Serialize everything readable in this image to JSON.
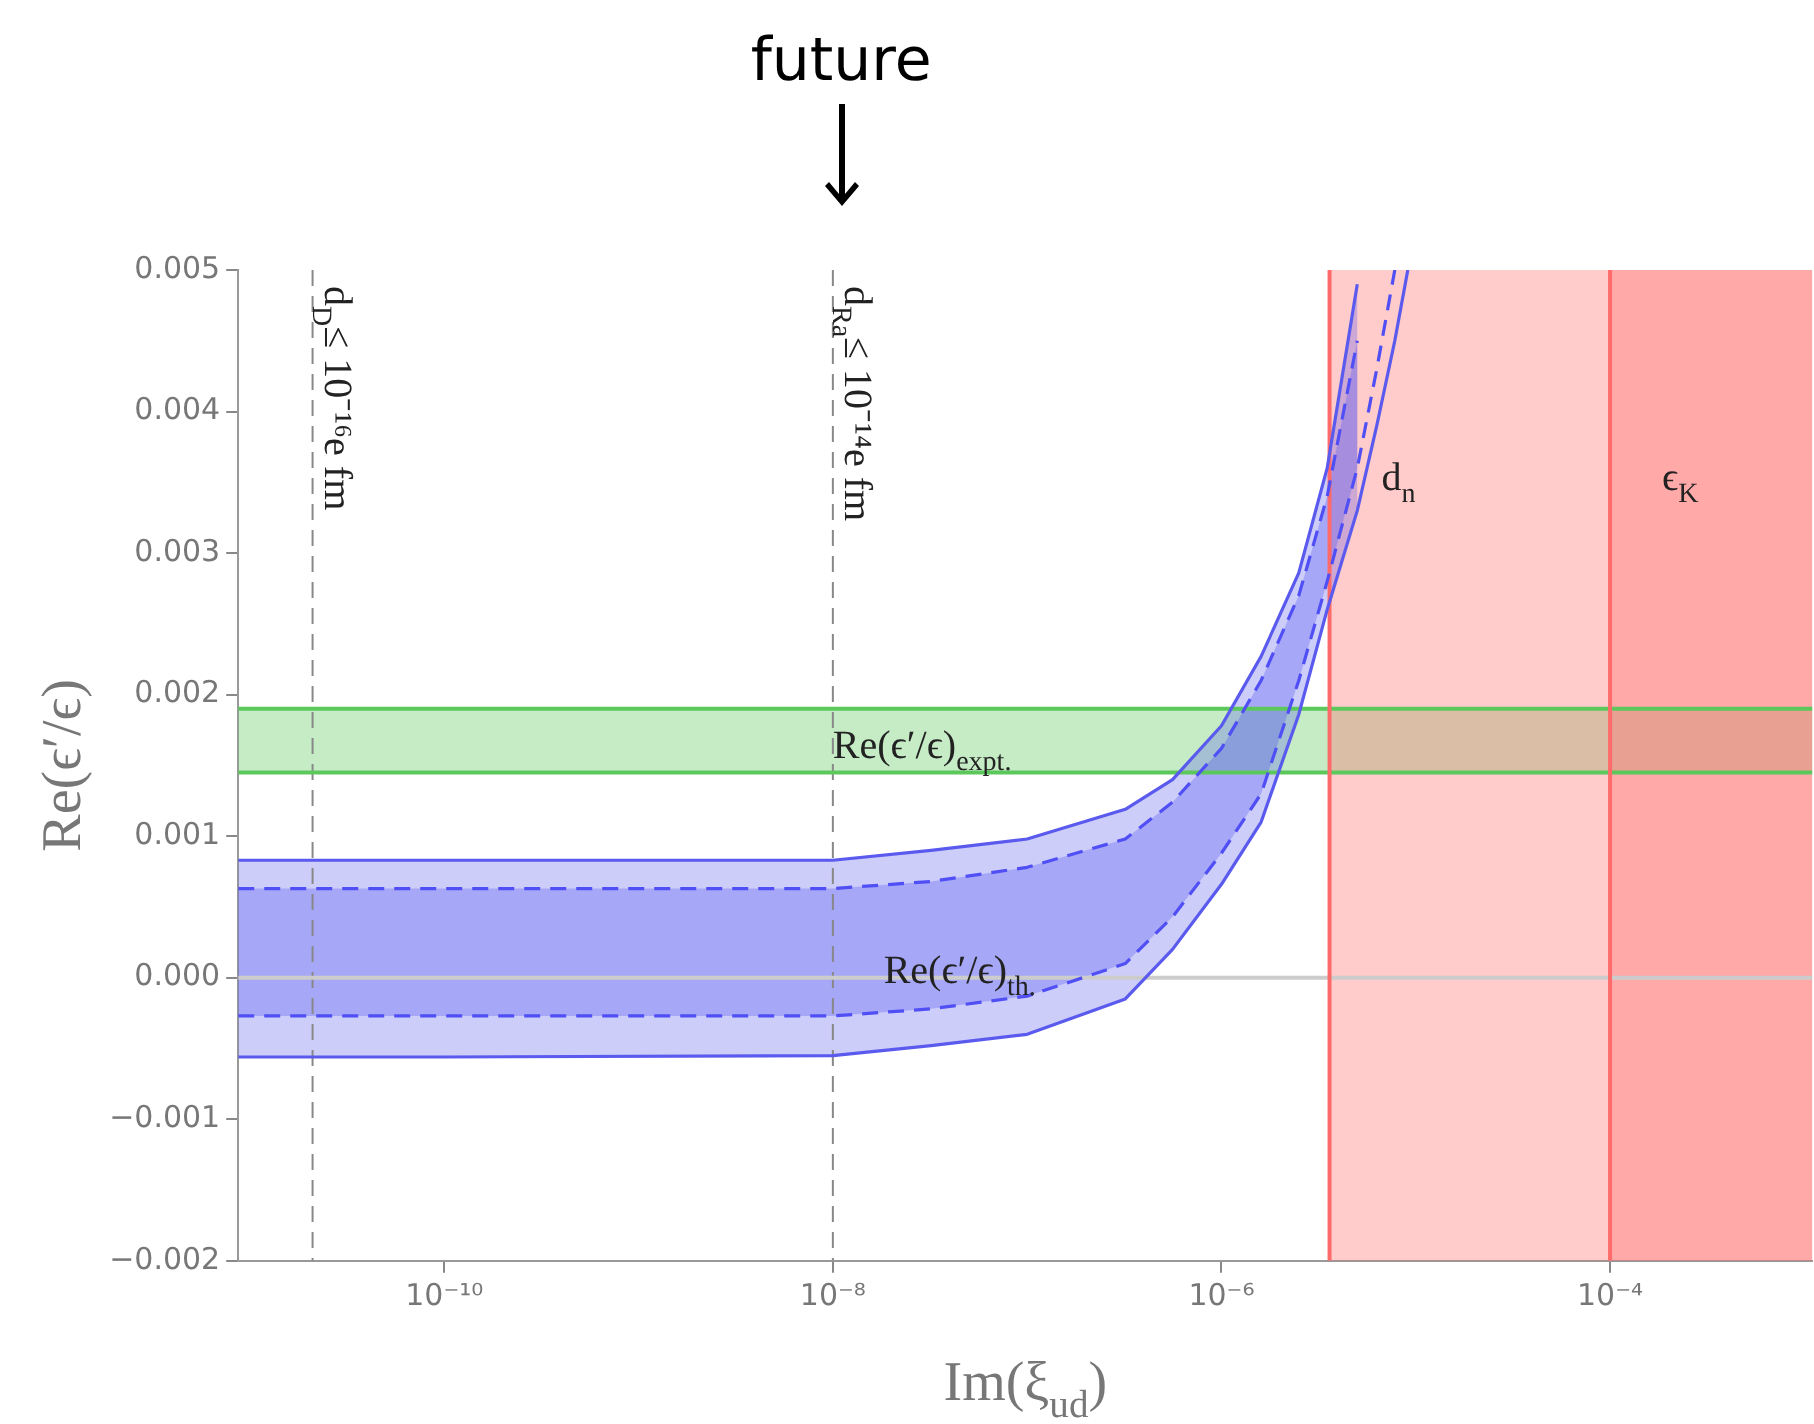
{
  "chart_data": {
    "type": "line",
    "xlabel": "Im(ξ$_{ud}$)",
    "ylabel": "Re(ϵ′/ϵ)",
    "log": "x",
    "grid": false,
    "legend": false,
    "marker": "none",
    "xlim": [
      8.7e-12,
      0.0011
    ],
    "xticks": [
      {
        "value": 1e-10,
        "label": "10⁻¹⁰"
      },
      {
        "value": 1e-08,
        "label": "10⁻⁸"
      },
      {
        "value": 1e-06,
        "label": "10⁻⁶"
      },
      {
        "value": 0.0001,
        "label": "10⁻⁴"
      }
    ],
    "ylim": [
      -0.002,
      0.005
    ],
    "yticks": [
      {
        "value": -0.002,
        "label": "−0.002"
      },
      {
        "value": -0.001,
        "label": "−0.001"
      },
      {
        "value": 0,
        "label": "0.000"
      },
      0.001,
      0.002,
      0.003,
      0.004,
      0.005
    ],
    "x": [
      8.7e-12,
      1e-10,
      1e-08,
      3.2e-08,
      1e-07,
      3.2e-07,
      5.6e-07,
      1e-06,
      1.6e-06,
      2.5e-06,
      3.5e-06,
      5e-06,
      6.3e-06,
      7.8e-06,
      9.1e-06
    ],
    "series": [
      {
        "color": "#5a5aee",
        "line_style": "solid",
        "values": [
          -0.00056,
          -0.00056,
          -0.00055,
          -0.00048,
          -0.0004,
          -0.00015,
          0.0002,
          0.00066,
          0.0011,
          0.00186,
          0.0026,
          0.0033,
          0.0039,
          0.0045,
          0.005
        ],
        "lower": [
          -0.00056,
          -0.00056,
          -0.00055,
          -0.00048,
          -0.0004,
          -0.00015,
          0.0002,
          0.00066,
          0.0011,
          0.00186,
          0.0026,
          0.0033,
          null,
          null,
          null
        ],
        "upper": [
          0.00083,
          0.00083,
          0.00083,
          0.0009,
          0.00098,
          0.00119,
          0.0014,
          0.00178,
          0.00227,
          0.00286,
          0.0036,
          0.0049,
          null,
          null,
          null
        ]
      },
      {
        "color": "#5a5aee",
        "line_style": "solid",
        "values": [
          0.00083,
          0.00083,
          0.00083,
          0.0009,
          0.00098,
          0.00119,
          0.0014,
          0.00178,
          0.00227,
          0.00286,
          0.0036,
          0.0049,
          null,
          null,
          null
        ]
      },
      {
        "color": "#4f4ff5",
        "line_style": "dashed",
        "values": [
          -0.00027,
          -0.00027,
          -0.00027,
          -0.00022,
          -0.00013,
          0.0001,
          0.00043,
          0.00088,
          0.0013,
          0.0021,
          0.0028,
          0.0036,
          0.0043,
          0.005,
          null
        ],
        "lower": [
          -0.00027,
          -0.00027,
          -0.00027,
          -0.00022,
          -0.00013,
          0.0001,
          0.00043,
          0.00088,
          0.0013,
          0.0021,
          0.0028,
          0.0036,
          null,
          null,
          null
        ],
        "upper": [
          0.00063,
          0.00063,
          0.00063,
          0.00068,
          0.00078,
          0.00098,
          0.00124,
          0.00162,
          0.0021,
          0.0027,
          0.0034,
          0.0045,
          null,
          null,
          null
        ]
      },
      {
        "color": "#4f4ff5",
        "line_style": "dashed",
        "values": [
          0.00063,
          0.00063,
          0.00063,
          0.00068,
          0.00078,
          0.00098,
          0.00124,
          0.00162,
          0.0021,
          0.0027,
          0.0034,
          0.0045,
          null,
          null,
          null
        ]
      }
    ],
    "bands": [
      {
        "axis": "y",
        "from": 0.00145,
        "to": 0.0019,
        "color": "#5cc85c"
      },
      {
        "axis": "x",
        "from": 3.6e-06,
        "to": 0.0011,
        "label": "d$_{n}$",
        "color": "#ff6b6b"
      },
      {
        "axis": "x",
        "from": 0.0001,
        "to": 0.0011,
        "label": "ϵ$_{K}$",
        "color": "#ff6b6b"
      }
    ],
    "ref_lines": [
      {
        "axis": "x",
        "value": 2.1e-11,
        "label": "d$_{D}$≤ 10⁻¹⁶e fm",
        "color": "#888888",
        "line_style": "dashed"
      },
      {
        "axis": "x",
        "value": 1e-08,
        "label": "d$_{Ra}$≤ 10⁻¹⁴e fm",
        "color": "#888888",
        "line_style": "dashed"
      },
      {
        "axis": "y",
        "value": 0,
        "color": "#cccccc",
        "line_style": "solid"
      },
      {
        "axis": "y",
        "value": 0.00145,
        "color": "#5cc85c",
        "line_style": "solid"
      },
      {
        "axis": "y",
        "value": 0.0019,
        "color": "#5cc85c",
        "line_style": "solid"
      },
      {
        "axis": "x",
        "value": 3.6e-06,
        "color": "#ff6b6b",
        "line_style": "solid"
      },
      {
        "axis": "x",
        "value": 0.0001,
        "color": "#ff6b6b",
        "line_style": "solid"
      }
    ],
    "annotations": [
      {
        "text": "Re(ϵ′/ϵ)$_{expt.}$",
        "x": 1e-08,
        "y": 0.00165
      },
      "Re(ϵ′/ϵ)$_{th.}$",
      "future"
    ]
  }
}
